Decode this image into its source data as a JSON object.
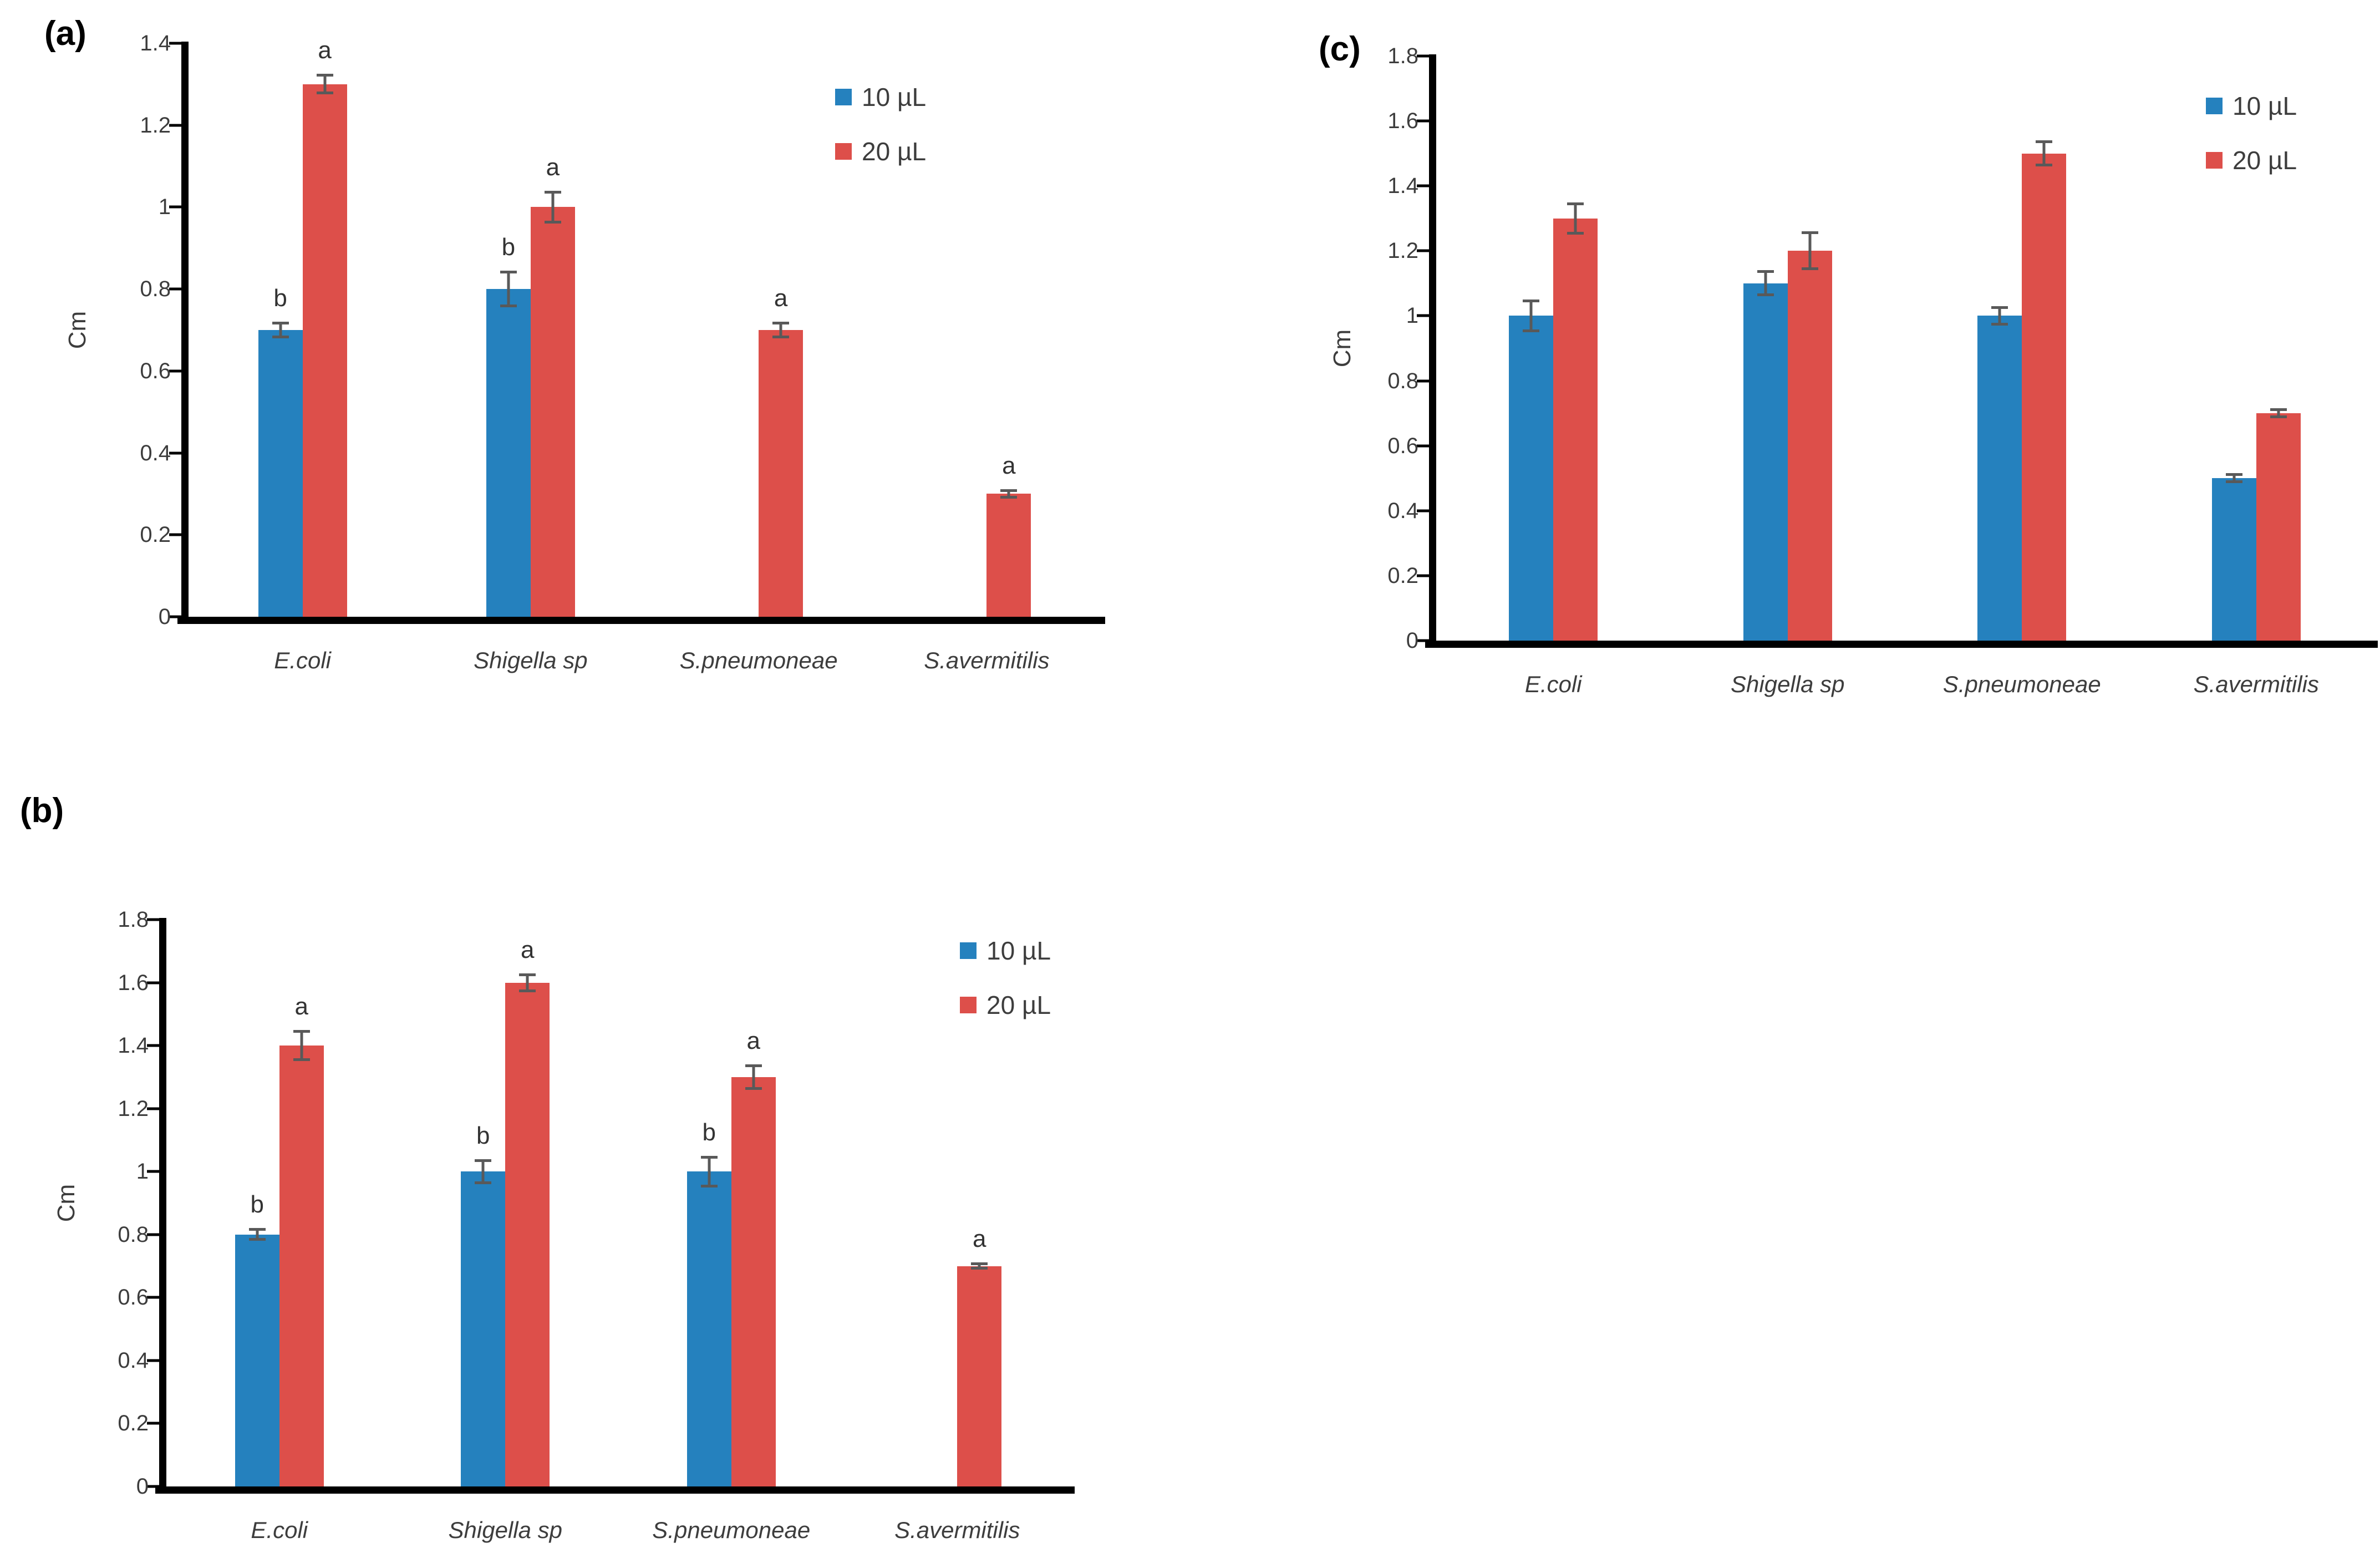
{
  "figure": {
    "description_colors": {
      "series_10uL_blue": "#2581be",
      "series_20uL_red": "#dd4f4a",
      "error_bar_gray": "#595959",
      "axis_black": "#000000",
      "text_gray": "#3d3d3d"
    }
  },
  "chart_data": [
    {
      "type": "bar",
      "panel_label": "(a)",
      "title": "",
      "xlabel": "",
      "ylabel": "Cm",
      "ylim": [
        0,
        1.4
      ],
      "grid": false,
      "legend_position": "top-right",
      "ytick_values": [
        0,
        0.2,
        0.4,
        0.6,
        0.8,
        1,
        1.2,
        1.4
      ],
      "ytick_labels": [
        "0",
        "0.2",
        "0.4",
        "0.6",
        "0.8",
        "1",
        "1.2",
        "1.4"
      ],
      "categories": [
        "E.coli",
        "Shigella sp",
        "S.pneumoneae",
        "S.avermitilis"
      ],
      "legend": {
        "entries": [
          {
            "label": "10 µL",
            "color": "#2581be"
          },
          {
            "label": "20 µL",
            "color": "#dd4f4a"
          }
        ]
      },
      "series": [
        {
          "name": "10 µL",
          "color": "#2581be",
          "values": [
            0.7,
            0.8,
            null,
            null
          ],
          "errors": [
            0.02,
            0.045,
            null,
            null
          ],
          "letters": [
            "b",
            "b",
            null,
            null
          ]
        },
        {
          "name": "20 µL",
          "color": "#dd4f4a",
          "values": [
            1.3,
            1.0,
            0.7,
            0.3
          ],
          "errors": [
            0.025,
            0.04,
            0.02,
            0.012
          ],
          "letters": [
            "a",
            "a",
            "a",
            "a"
          ]
        }
      ]
    },
    {
      "type": "bar",
      "panel_label": "(b)",
      "title": "",
      "xlabel": "",
      "ylabel": "Cm",
      "ylim": [
        0,
        1.8
      ],
      "grid": false,
      "legend_position": "top-right",
      "ytick_values": [
        0,
        0.2,
        0.4,
        0.6,
        0.8,
        1,
        1.2,
        1.4,
        1.6,
        1.8
      ],
      "ytick_labels": [
        "0",
        "0.2",
        "0.4",
        "0.6",
        "0.8",
        "1",
        "1.2",
        "1.4",
        "1.6",
        "1.8"
      ],
      "categories": [
        "E.coli",
        "Shigella sp",
        "S.pneumoneae",
        "S.avermitilis"
      ],
      "legend": {
        "entries": [
          {
            "label": "10 µL",
            "color": "#2581be"
          },
          {
            "label": "20 µL",
            "color": "#dd4f4a"
          }
        ]
      },
      "series": [
        {
          "name": "10 µL",
          "color": "#2581be",
          "values": [
            0.8,
            1.0,
            1.0,
            null
          ],
          "errors": [
            0.02,
            0.04,
            0.05,
            null
          ],
          "letters": [
            "b",
            "b",
            "b",
            null
          ]
        },
        {
          "name": "20 µL",
          "color": "#dd4f4a",
          "values": [
            1.4,
            1.6,
            1.3,
            0.7
          ],
          "errors": [
            0.05,
            0.03,
            0.04,
            0.012
          ],
          "letters": [
            "a",
            "a",
            "a",
            "a"
          ]
        }
      ]
    },
    {
      "type": "bar",
      "panel_label": "(c)",
      "title": "",
      "xlabel": "",
      "ylabel": "Cm",
      "ylim": [
        0,
        1.8
      ],
      "grid": false,
      "legend_position": "top-right",
      "ytick_values": [
        0,
        0.2,
        0.4,
        0.6,
        0.8,
        1,
        1.2,
        1.4,
        1.6,
        1.8
      ],
      "ytick_labels": [
        "0",
        "0.2",
        "0.4",
        "0.6",
        "0.8",
        "1",
        "1.2",
        "1.4",
        "1.6",
        "1.8"
      ],
      "categories": [
        "E.coli",
        "Shigella sp",
        "S.pneumoneae",
        "S.avermitilis"
      ],
      "legend": {
        "entries": [
          {
            "label": "10 µL",
            "color": "#2581be"
          },
          {
            "label": "20 µL",
            "color": "#dd4f4a"
          }
        ]
      },
      "series": [
        {
          "name": "10 µL",
          "color": "#2581be",
          "values": [
            1.0,
            1.1,
            1.0,
            0.5
          ],
          "errors": [
            0.05,
            0.04,
            0.03,
            0.015
          ],
          "letters": [
            null,
            null,
            null,
            null
          ]
        },
        {
          "name": "20 µL",
          "color": "#dd4f4a",
          "values": [
            1.3,
            1.2,
            1.5,
            0.7
          ],
          "errors": [
            0.05,
            0.06,
            0.04,
            0.015
          ],
          "letters": [
            null,
            null,
            null,
            null
          ]
        }
      ]
    }
  ]
}
